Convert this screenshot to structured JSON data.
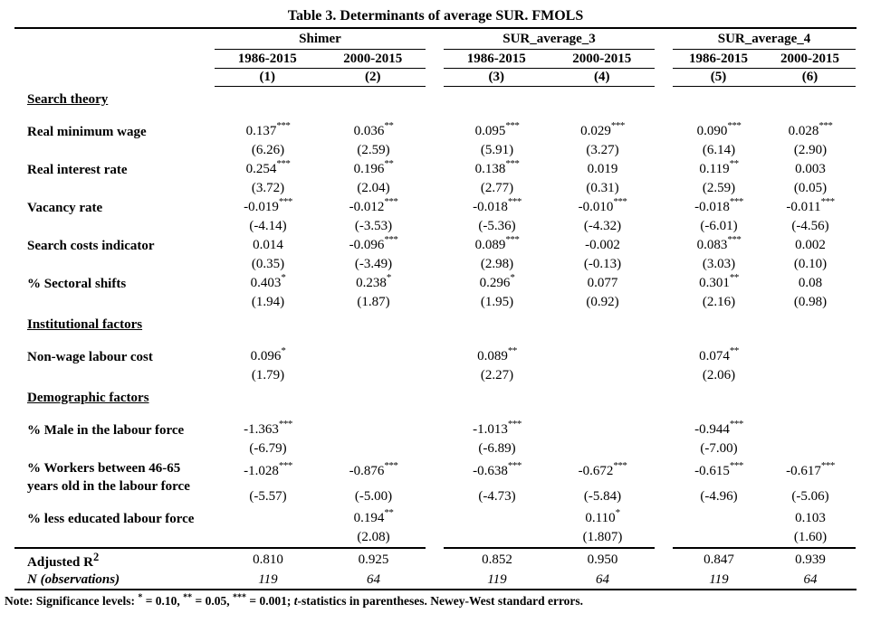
{
  "title": "Table 3. Determinants of average SUR. FMOLS",
  "header": {
    "groups": [
      {
        "name": "Shimer",
        "periods": [
          "1986-2015",
          "2000-2015"
        ],
        "numbers": [
          "(1)",
          "(2)"
        ]
      },
      {
        "name": "SUR_average_3",
        "periods": [
          "1986-2015",
          "2000-2015"
        ],
        "numbers": [
          "(3)",
          "(4)"
        ]
      },
      {
        "name": "SUR_average_4",
        "periods": [
          "1986-2015",
          "2000-2015"
        ],
        "numbers": [
          "(5)",
          "(6)"
        ]
      }
    ]
  },
  "rows": [
    {
      "type": "section",
      "label": "Search theory"
    },
    {
      "type": "var",
      "label": "Real minimum wage",
      "coefs": [
        "0.137",
        "0.036",
        "0.095",
        "0.029",
        "0.090",
        "0.028"
      ],
      "stars": [
        "***",
        "**",
        "***",
        "***",
        "***",
        "***"
      ],
      "tstats": [
        "(6.26)",
        "(2.59)",
        "(5.91)",
        "(3.27)",
        "(6.14)",
        "(2.90)"
      ]
    },
    {
      "type": "var",
      "label": "Real interest rate",
      "coefs": [
        "0.254",
        "0.196",
        "0.138",
        "0.019",
        "0.119",
        "0.003"
      ],
      "stars": [
        "***",
        "**",
        "***",
        "",
        "**",
        ""
      ],
      "tstats": [
        "(3.72)",
        "(2.04)",
        "(2.77)",
        "(0.31)",
        "(2.59)",
        "(0.05)"
      ]
    },
    {
      "type": "var",
      "label": "Vacancy rate",
      "coefs": [
        "-0.019",
        "-0.012",
        "-0.018",
        "-0.010",
        "-0.018",
        "-0.011"
      ],
      "stars": [
        "***",
        "***",
        "***",
        "***",
        "***",
        "***"
      ],
      "tstats": [
        "(-4.14)",
        "(-3.53)",
        "(-5.36)",
        "(-4.32)",
        "(-6.01)",
        "(-4.56)"
      ]
    },
    {
      "type": "var",
      "label": "Search costs indicator",
      "coefs": [
        "0.014",
        "-0.096",
        "0.089",
        "-0.002",
        "0.083",
        "0.002"
      ],
      "stars": [
        "",
        "***",
        "***",
        "",
        "***",
        ""
      ],
      "tstats": [
        "(0.35)",
        "(-3.49)",
        "(2.98)",
        "(-0.13)",
        "(3.03)",
        "(0.10)"
      ]
    },
    {
      "type": "var",
      "label": "% Sectoral shifts",
      "coefs": [
        "0.403",
        "0.238",
        "0.296",
        "0.077",
        "0.301",
        "0.08"
      ],
      "stars": [
        "*",
        "*",
        "*",
        "",
        "**",
        ""
      ],
      "tstats": [
        "(1.94)",
        "(1.87)",
        "(1.95)",
        "(0.92)",
        "(2.16)",
        "(0.98)"
      ]
    },
    {
      "type": "section",
      "label": "Institutional factors"
    },
    {
      "type": "var",
      "label": "Non-wage labour cost",
      "coefs": [
        "0.096",
        "",
        "0.089",
        "",
        "0.074",
        ""
      ],
      "stars": [
        "*",
        "",
        "**",
        "",
        "**",
        ""
      ],
      "tstats": [
        "(1.79)",
        "",
        "(2.27)",
        "",
        "(2.06)",
        ""
      ]
    },
    {
      "type": "section",
      "label": "Demographic factors"
    },
    {
      "type": "var",
      "label": "% Male in the labour force",
      "coefs": [
        "-1.363",
        "",
        "-1.013",
        "",
        "-0.944",
        ""
      ],
      "stars": [
        "***",
        "",
        "***",
        "",
        "***",
        ""
      ],
      "tstats": [
        "(-6.79)",
        "",
        "(-6.89)",
        "",
        "(-7.00)",
        ""
      ]
    },
    {
      "type": "var",
      "label": "% Workers between 46-65 years old in the labour force",
      "coefs": [
        "-1.028",
        "-0.876",
        "-0.638",
        "-0.672",
        "-0.615",
        "-0.617"
      ],
      "stars": [
        "***",
        "***",
        "***",
        "***",
        "***",
        "***"
      ],
      "tstats": [
        "(-5.57)",
        "(-5.00)",
        "(-4.73)",
        "(-5.84)",
        "(-4.96)",
        "(-5.06)"
      ]
    },
    {
      "type": "var",
      "label": "% less educated labour force",
      "coefs": [
        "",
        "0.194",
        "",
        "0.110",
        "",
        "0.103"
      ],
      "stars": [
        "",
        "**",
        "",
        "*",
        "",
        ""
      ],
      "tstats": [
        "",
        "(2.08)",
        "",
        "(1.807)",
        "",
        "(1.60)"
      ]
    }
  ],
  "footer": {
    "rows": [
      {
        "label": "Adjusted R",
        "label_sup": "2",
        "italic": false,
        "values": [
          "0.810",
          "0.925",
          "0.852",
          "0.950",
          "0.847",
          "0.939"
        ]
      },
      {
        "label": "N (observations)",
        "label_sup": "",
        "italic": true,
        "values": [
          "119",
          "64",
          "119",
          "64",
          "119",
          "64"
        ]
      }
    ]
  },
  "note": {
    "parts": [
      {
        "text": "Note: Significance levels: "
      },
      {
        "text": "*",
        "sup": true
      },
      {
        "text": " = 0.10, "
      },
      {
        "text": "**",
        "sup": true
      },
      {
        "text": " = 0.05, "
      },
      {
        "text": "***",
        "sup": true
      },
      {
        "text": " = 0.001; "
      },
      {
        "text": "t",
        "italic": true
      },
      {
        "text": "-statistics in parentheses. Newey-West standard errors."
      }
    ]
  }
}
